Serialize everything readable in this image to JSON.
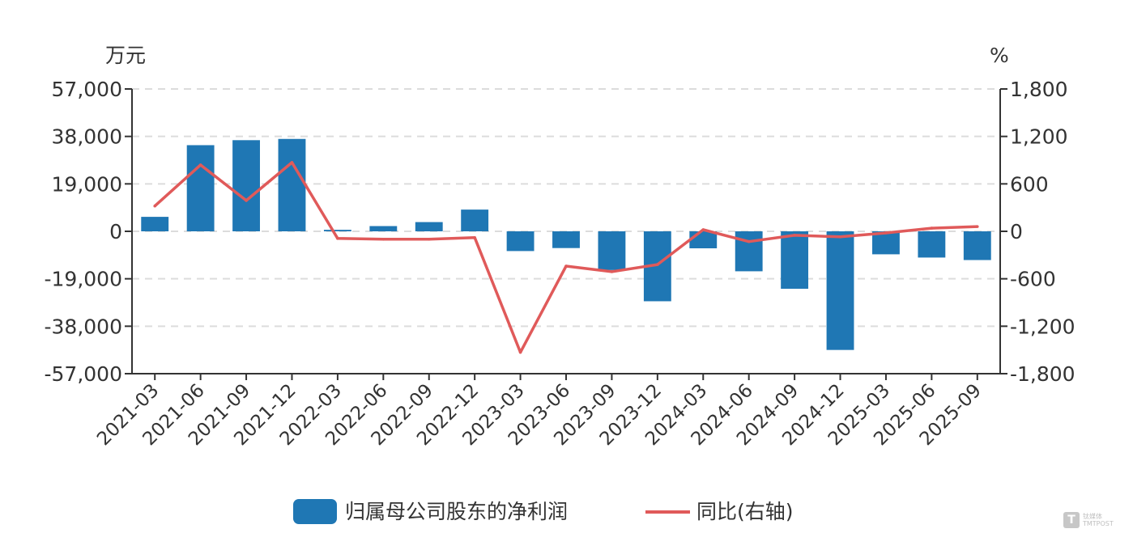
{
  "chart_data": {
    "type": "bar",
    "left_unit": "万元",
    "right_unit": "%",
    "categories": [
      "2021-03",
      "2021-06",
      "2021-09",
      "2021-12",
      "2022-03",
      "2022-06",
      "2022-09",
      "2022-12",
      "2023-03",
      "2023-06",
      "2023-09",
      "2023-12",
      "2024-03",
      "2024-06",
      "2024-09",
      "2024-12",
      "2025-03",
      "2025-06",
      "2025-09"
    ],
    "series": [
      {
        "name": "归属母公司股东的净利润",
        "type": "bar",
        "axis": "left",
        "color": "#1f77b4",
        "values": [
          5800,
          34500,
          36500,
          37000,
          600,
          2100,
          3700,
          8700,
          -7900,
          -6700,
          -15500,
          -28000,
          -6800,
          -16000,
          -23000,
          -47500,
          -9200,
          -10500,
          -11500
        ]
      },
      {
        "name": "同比(右轴)",
        "type": "line",
        "axis": "right",
        "color": "#e05a5a",
        "values": [
          320,
          840,
          390,
          870,
          -90,
          -100,
          -100,
          -80,
          -1530,
          -440,
          -510,
          -420,
          20,
          -130,
          -50,
          -70,
          -20,
          40,
          60
        ]
      }
    ],
    "left_axis": {
      "ticks": [
        "57,000",
        "38,000",
        "19,000",
        "0",
        "-19,000",
        "-38,000",
        "-57,000"
      ],
      "range": [
        -57000,
        57000
      ]
    },
    "right_axis": {
      "ticks": [
        "1,800",
        "1,200",
        "600",
        "0",
        "-600",
        "-1,200",
        "-1,800"
      ],
      "range": [
        -1800,
        1800
      ]
    },
    "grid": true,
    "legend_position": "bottom"
  },
  "watermark": {
    "logo": "T",
    "text": [
      "钛媒体",
      "TMTPOST"
    ]
  }
}
